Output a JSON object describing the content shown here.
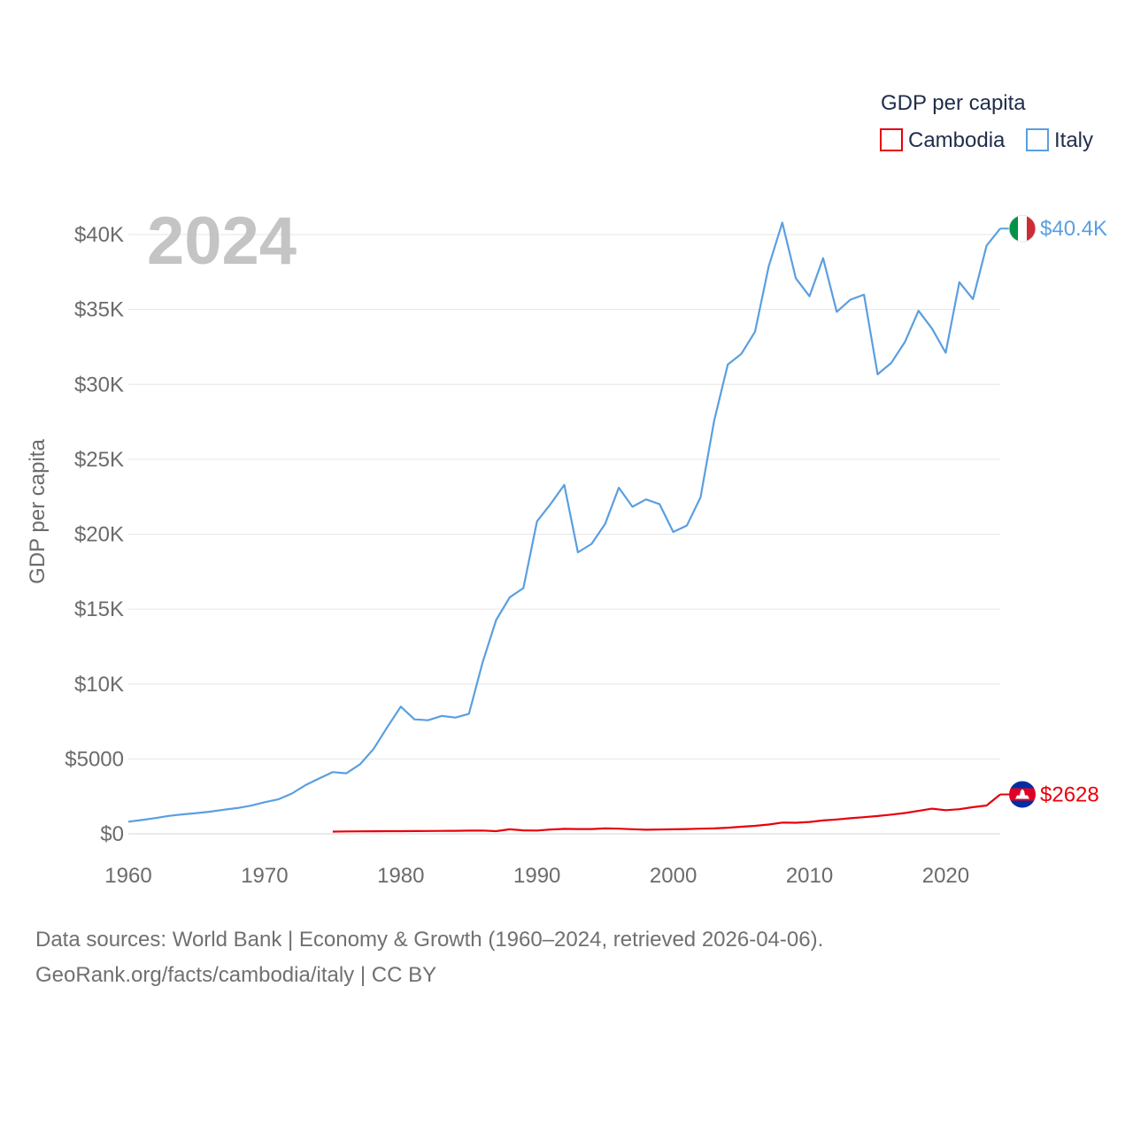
{
  "chart_data": {
    "type": "line",
    "legend": {
      "title": "GDP per capita",
      "placement": "top-right"
    },
    "year_label": "2024",
    "ylabel": "GDP per capita",
    "xlabel": "",
    "xlim": [
      1960,
      2024
    ],
    "ylim": [
      0,
      40000
    ],
    "x_ticks": [
      {
        "value": 1960,
        "label": "1960"
      },
      {
        "value": 1970,
        "label": "1970"
      },
      {
        "value": 1980,
        "label": "1980"
      },
      {
        "value": 1990,
        "label": "1990"
      },
      {
        "value": 2000,
        "label": "2000"
      },
      {
        "value": 2010,
        "label": "2010"
      },
      {
        "value": 2020,
        "label": "2020"
      }
    ],
    "y_ticks": [
      {
        "value": 0,
        "label": "$0"
      },
      {
        "value": 5000,
        "label": "$5000"
      },
      {
        "value": 10000,
        "label": "$10K"
      },
      {
        "value": 15000,
        "label": "$15K"
      },
      {
        "value": 20000,
        "label": "$20K"
      },
      {
        "value": 25000,
        "label": "$25K"
      },
      {
        "value": 30000,
        "label": "$30K"
      },
      {
        "value": 35000,
        "label": "$35K"
      },
      {
        "value": 40000,
        "label": "$40K"
      }
    ],
    "grid": true,
    "series": [
      {
        "name": "Cambodia",
        "color": "#e8000b",
        "end_label": "$2628",
        "flag": "cambodia-flag",
        "x": [
          1975,
          1976,
          1977,
          1978,
          1979,
          1980,
          1981,
          1982,
          1983,
          1984,
          1985,
          1986,
          1987,
          1988,
          1989,
          1990,
          1991,
          1992,
          1993,
          1994,
          1995,
          1996,
          1997,
          1998,
          1999,
          2000,
          2001,
          2002,
          2003,
          2004,
          2005,
          2006,
          2007,
          2008,
          2009,
          2010,
          2011,
          2012,
          2013,
          2014,
          2015,
          2016,
          2017,
          2018,
          2019,
          2020,
          2021,
          2022,
          2023,
          2024
        ],
        "values": [
          150,
          160,
          165,
          170,
          175,
          180,
          185,
          190,
          195,
          200,
          210,
          220,
          180,
          300,
          230,
          220,
          290,
          330,
          320,
          320,
          360,
          340,
          310,
          270,
          290,
          300,
          320,
          340,
          360,
          410,
          470,
          530,
          620,
          750,
          740,
          790,
          890,
          960,
          1040,
          1110,
          1190,
          1280,
          1390,
          1530,
          1680,
          1580,
          1640,
          1780,
          1890,
          2628
        ]
      },
      {
        "name": "Italy",
        "color": "#5a9fe0",
        "end_label": "$40.4K",
        "flag": "italy-flag",
        "x": [
          1960,
          1961,
          1962,
          1963,
          1964,
          1965,
          1966,
          1967,
          1968,
          1969,
          1970,
          1971,
          1972,
          1973,
          1974,
          1975,
          1976,
          1977,
          1978,
          1979,
          1980,
          1981,
          1982,
          1983,
          1984,
          1985,
          1986,
          1987,
          1988,
          1989,
          1990,
          1991,
          1992,
          1993,
          1994,
          1995,
          1996,
          1997,
          1998,
          1999,
          2000,
          2001,
          2002,
          2003,
          2004,
          2005,
          2006,
          2007,
          2008,
          2009,
          2010,
          2011,
          2012,
          2013,
          2014,
          2015,
          2016,
          2017,
          2018,
          2019,
          2020,
          2021,
          2022,
          2023,
          2024
        ],
        "values": [
          810,
          920,
          1050,
          1200,
          1300,
          1380,
          1480,
          1610,
          1720,
          1880,
          2110,
          2300,
          2690,
          3250,
          3690,
          4120,
          4040,
          4630,
          5660,
          7110,
          8490,
          7640,
          7580,
          7870,
          7760,
          8010,
          11440,
          14270,
          15790,
          16400,
          20860,
          22020,
          23290,
          18790,
          19350,
          20700,
          23100,
          21830,
          22320,
          22000,
          20150,
          20580,
          22460,
          27570,
          31320,
          32040,
          33520,
          37870,
          40800,
          37080,
          35880,
          38430,
          34840,
          35650,
          35990,
          30670,
          31430,
          32830,
          34910,
          33720,
          32110,
          36820,
          35690,
          39260,
          40400
        ]
      }
    ]
  },
  "source": {
    "line1": "Data sources: World Bank | Economy & Growth (1960–2024, retrieved 2026-04-06).",
    "line2": "GeoRank.org/facts/cambodia/italy | CC BY"
  }
}
